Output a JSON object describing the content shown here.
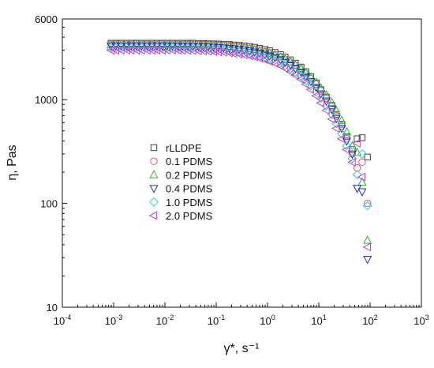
{
  "chart_data": {
    "type": "scatter",
    "title": "",
    "xlabel": "γ*, s⁻¹",
    "ylabel": "η, Pas",
    "x_scale": "log",
    "y_scale": "log",
    "xlim": [
      0.0001,
      1000
    ],
    "ylim": [
      10,
      6000
    ],
    "grid": false,
    "legend_position": "center-left",
    "x_ticks": [
      {
        "value": 0.0001,
        "base": "10",
        "exp": "-4"
      },
      {
        "value": 0.001,
        "base": "10",
        "exp": "-3"
      },
      {
        "value": 0.01,
        "base": "10",
        "exp": "-2"
      },
      {
        "value": 0.1,
        "base": "10",
        "exp": "-1"
      },
      {
        "value": 1,
        "base": "10",
        "exp": "0"
      },
      {
        "value": 10,
        "base": "10",
        "exp": "1"
      },
      {
        "value": 100,
        "base": "10",
        "exp": "2"
      },
      {
        "value": 1000,
        "base": "10",
        "exp": "3"
      }
    ],
    "y_ticks": [
      {
        "value": 10,
        "label": "10"
      },
      {
        "value": 100,
        "label": "100"
      },
      {
        "value": 1000,
        "label": "1000"
      },
      {
        "value": 6000,
        "label": "6000"
      }
    ],
    "series": [
      {
        "name": "rLLDPE",
        "marker": "square",
        "color": "#444444",
        "x": [
          0.00089,
          0.0011,
          0.0014,
          0.0018,
          0.0022,
          0.0028,
          0.0035,
          0.0045,
          0.0056,
          0.007,
          0.0089,
          0.011,
          0.014,
          0.018,
          0.022,
          0.028,
          0.035,
          0.045,
          0.056,
          0.07,
          0.089,
          0.11,
          0.14,
          0.18,
          0.22,
          0.28,
          0.35,
          0.45,
          0.56,
          0.7,
          0.89,
          1.1,
          1.4,
          1.8,
          2.2,
          2.8,
          3.5,
          4.5,
          5.6,
          7,
          8.9,
          11,
          14,
          18,
          22,
          28,
          35,
          45,
          56,
          70,
          89
        ],
        "y": [
          3500,
          3500,
          3500,
          3500,
          3500,
          3500,
          3500,
          3500,
          3500,
          3500,
          3500,
          3500,
          3500,
          3500,
          3500,
          3500,
          3500,
          3480,
          3480,
          3460,
          3450,
          3440,
          3420,
          3400,
          3370,
          3340,
          3300,
          3250,
          3200,
          3130,
          3050,
          2960,
          2850,
          2720,
          2580,
          2420,
          2250,
          2060,
          1860,
          1660,
          1450,
          1250,
          1060,
          880,
          720,
          580,
          440,
          330,
          420,
          430,
          280
        ]
      },
      {
        "name": "0.1 PDMS",
        "marker": "circle",
        "color": "#e05a6a",
        "x": [
          0.00089,
          0.0011,
          0.0014,
          0.0018,
          0.0022,
          0.0028,
          0.0035,
          0.0045,
          0.0056,
          0.007,
          0.0089,
          0.011,
          0.014,
          0.018,
          0.022,
          0.028,
          0.035,
          0.045,
          0.056,
          0.07,
          0.089,
          0.11,
          0.14,
          0.18,
          0.22,
          0.28,
          0.35,
          0.45,
          0.56,
          0.7,
          0.89,
          1.1,
          1.4,
          1.8,
          2.2,
          2.8,
          3.5,
          4.5,
          5.6,
          7,
          8.9,
          11,
          14,
          18,
          22,
          28,
          35,
          45,
          56,
          70,
          89
        ],
        "y": [
          3450,
          3450,
          3450,
          3450,
          3450,
          3450,
          3450,
          3450,
          3450,
          3450,
          3450,
          3450,
          3450,
          3440,
          3440,
          3430,
          3420,
          3410,
          3400,
          3390,
          3370,
          3350,
          3330,
          3300,
          3270,
          3230,
          3180,
          3130,
          3070,
          3000,
          2920,
          2830,
          2720,
          2600,
          2460,
          2310,
          2150,
          1970,
          1790,
          1600,
          1410,
          1220,
          1030,
          860,
          700,
          560,
          420,
          300,
          220,
          250,
          100
        ]
      },
      {
        "name": "0.2 PDMS",
        "marker": "triangle-up",
        "color": "#2db82d",
        "x": [
          0.00089,
          0.0011,
          0.0014,
          0.0018,
          0.0022,
          0.0028,
          0.0035,
          0.0045,
          0.0056,
          0.007,
          0.0089,
          0.011,
          0.014,
          0.018,
          0.022,
          0.028,
          0.035,
          0.045,
          0.056,
          0.07,
          0.089,
          0.11,
          0.14,
          0.18,
          0.22,
          0.28,
          0.35,
          0.45,
          0.56,
          0.7,
          0.89,
          1.1,
          1.4,
          1.8,
          2.2,
          2.8,
          3.5,
          4.5,
          5.6,
          7,
          8.9,
          11,
          14,
          18,
          22,
          28,
          35,
          45,
          56,
          70,
          89
        ],
        "y": [
          3400,
          3400,
          3400,
          3400,
          3400,
          3400,
          3400,
          3400,
          3400,
          3400,
          3400,
          3400,
          3400,
          3390,
          3390,
          3380,
          3370,
          3360,
          3350,
          3340,
          3320,
          3300,
          3280,
          3250,
          3220,
          3180,
          3140,
          3090,
          3030,
          2960,
          2880,
          2790,
          2690,
          2580,
          2450,
          2310,
          2160,
          2000,
          1830,
          1650,
          1470,
          1290,
          1110,
          940,
          780,
          630,
          490,
          360,
          310,
          160,
          44
        ]
      },
      {
        "name": "0.4 PDMS",
        "marker": "triangle-down",
        "color": "#1f2fa8",
        "x": [
          0.00089,
          0.0011,
          0.0014,
          0.0018,
          0.0022,
          0.0028,
          0.0035,
          0.0045,
          0.0056,
          0.007,
          0.0089,
          0.011,
          0.014,
          0.018,
          0.022,
          0.028,
          0.035,
          0.045,
          0.056,
          0.07,
          0.089,
          0.11,
          0.14,
          0.18,
          0.22,
          0.28,
          0.35,
          0.45,
          0.56,
          0.7,
          0.89,
          1.1,
          1.4,
          1.8,
          2.2,
          2.8,
          3.5,
          4.5,
          5.6,
          7,
          8.9,
          11,
          14,
          18,
          22,
          28,
          35,
          45,
          56,
          70,
          89
        ],
        "y": [
          3300,
          3300,
          3300,
          3300,
          3300,
          3300,
          3300,
          3300,
          3300,
          3300,
          3300,
          3300,
          3300,
          3290,
          3290,
          3280,
          3270,
          3260,
          3250,
          3230,
          3210,
          3190,
          3160,
          3130,
          3100,
          3060,
          3010,
          2950,
          2890,
          2820,
          2740,
          2650,
          2550,
          2430,
          2300,
          2160,
          2010,
          1850,
          1680,
          1500,
          1320,
          1140,
          970,
          810,
          660,
          530,
          400,
          300,
          140,
          130,
          29
        ]
      },
      {
        "name": "1.0 PDMS",
        "marker": "diamond",
        "color": "#36c8e0",
        "x": [
          0.00089,
          0.0011,
          0.0014,
          0.0018,
          0.0022,
          0.0028,
          0.0035,
          0.0045,
          0.0056,
          0.007,
          0.0089,
          0.011,
          0.014,
          0.018,
          0.022,
          0.028,
          0.035,
          0.045,
          0.056,
          0.07,
          0.089,
          0.11,
          0.14,
          0.18,
          0.22,
          0.28,
          0.35,
          0.45,
          0.56,
          0.7,
          0.89,
          1.1,
          1.4,
          1.8,
          2.2,
          2.8,
          3.5,
          4.5,
          5.6,
          7,
          8.9,
          11,
          14,
          18,
          22,
          28,
          35,
          45,
          56,
          70,
          89
        ],
        "y": [
          3150,
          3150,
          3150,
          3150,
          3150,
          3150,
          3150,
          3150,
          3150,
          3150,
          3150,
          3150,
          3150,
          3140,
          3140,
          3130,
          3120,
          3110,
          3100,
          3080,
          3060,
          3040,
          3010,
          2980,
          2940,
          2900,
          2850,
          2790,
          2730,
          2660,
          2580,
          2490,
          2390,
          2270,
          2140,
          2000,
          1850,
          1690,
          1530,
          1360,
          1190,
          1030,
          870,
          720,
          590,
          470,
          360,
          270,
          190,
          300,
          95
        ]
      },
      {
        "name": "2.0 PDMS",
        "marker": "triangle-left",
        "color": "#c040d8",
        "x": [
          0.00089,
          0.0011,
          0.0014,
          0.0018,
          0.0022,
          0.0028,
          0.0035,
          0.0045,
          0.0056,
          0.007,
          0.0089,
          0.011,
          0.014,
          0.018,
          0.022,
          0.028,
          0.035,
          0.045,
          0.056,
          0.07,
          0.089,
          0.11,
          0.14,
          0.18,
          0.22,
          0.28,
          0.35,
          0.45,
          0.56,
          0.7,
          0.89,
          1.1,
          1.4,
          1.8,
          2.2,
          2.8,
          3.5,
          4.5,
          5.6,
          7,
          8.9,
          11,
          14,
          18,
          22,
          28,
          35,
          45,
          56,
          70,
          89
        ],
        "y": [
          3000,
          3000,
          3000,
          3000,
          3000,
          3000,
          3000,
          3000,
          3000,
          3000,
          3000,
          3000,
          3000,
          2990,
          2990,
          2980,
          2970,
          2960,
          2950,
          2930,
          2910,
          2890,
          2860,
          2830,
          2790,
          2750,
          2700,
          2640,
          2580,
          2510,
          2430,
          2340,
          2240,
          2120,
          2000,
          1860,
          1720,
          1570,
          1410,
          1250,
          1090,
          930,
          790,
          650,
          530,
          420,
          330,
          250,
          380,
          180,
          38
        ]
      }
    ]
  }
}
